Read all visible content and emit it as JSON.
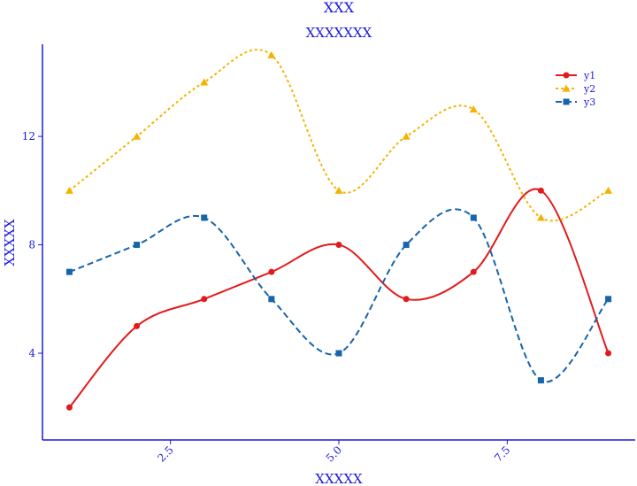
{
  "chart_data": {
    "type": "line",
    "title": "XXX",
    "subtitle": "XXXXXXX",
    "xlabel": "XXXXX",
    "ylabel": "XXXXX",
    "x": [
      1,
      2,
      3,
      4,
      5,
      6,
      7,
      8,
      9
    ],
    "xlim": [
      0.6,
      9.4
    ],
    "ylim": [
      0.8,
      15.4
    ],
    "xticks": [
      2.5,
      5.0,
      7.5
    ],
    "xtick_labels": [
      "2.5",
      "5.0",
      "7.5"
    ],
    "yticks": [
      4,
      8,
      12
    ],
    "ytick_labels": [
      "4",
      "8",
      "12"
    ],
    "grid": false,
    "legend_position": "top-right",
    "series": [
      {
        "name": "y1",
        "values": [
          2,
          5,
          6,
          7,
          8,
          6,
          7,
          10,
          4
        ],
        "color": "#e31a1c",
        "dash": "solid",
        "marker": "circle"
      },
      {
        "name": "y2",
        "values": [
          10,
          12,
          14,
          15,
          10,
          12,
          13,
          9,
          10
        ],
        "color": "#f5b300",
        "dash": "dotted",
        "marker": "triangle"
      },
      {
        "name": "y3",
        "values": [
          7,
          8,
          9,
          6,
          4,
          8,
          9,
          3,
          6
        ],
        "color": "#1764ab",
        "dash": "dashed",
        "marker": "square"
      }
    ],
    "axis_color": "#1a1adb"
  }
}
